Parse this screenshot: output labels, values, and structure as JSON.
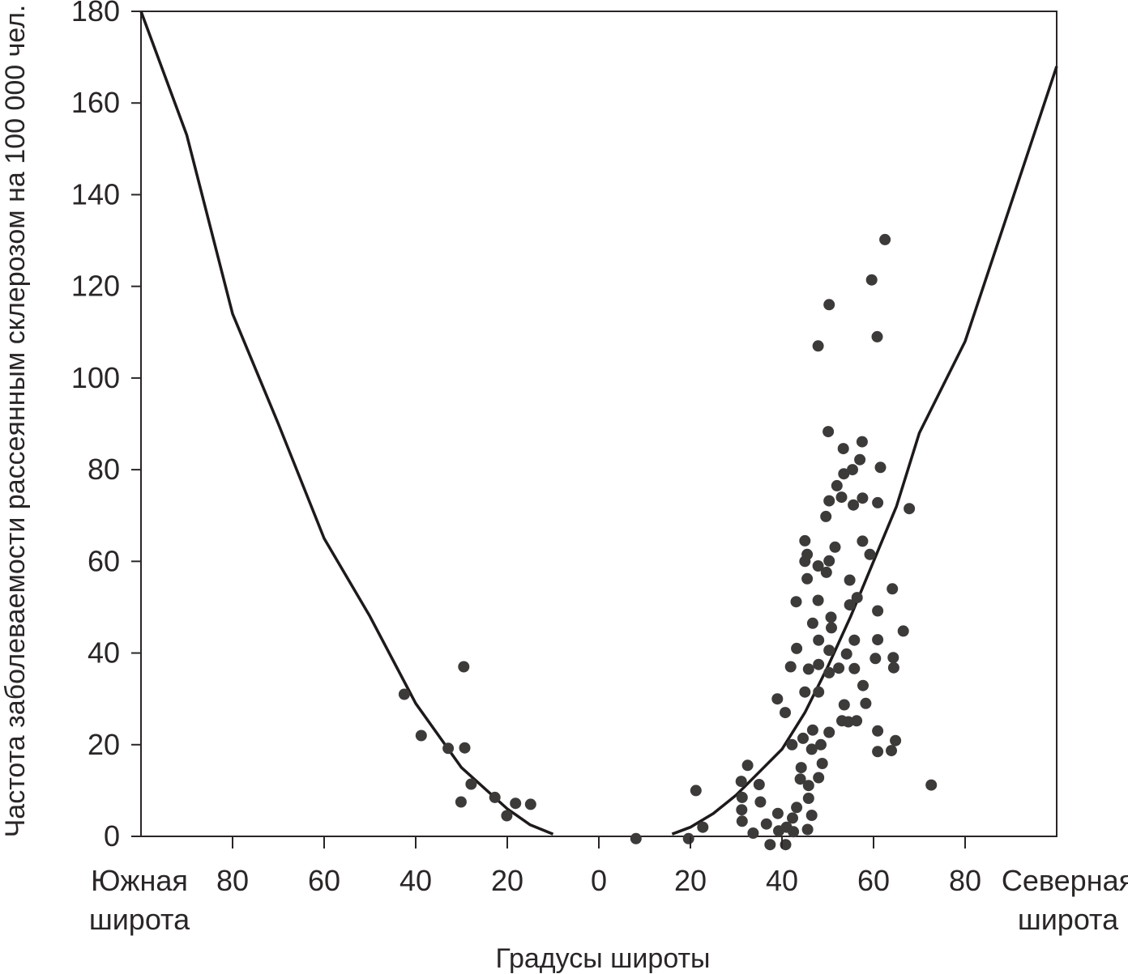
{
  "chart_data": {
    "type": "scatter",
    "title": "",
    "xlabel": "Градусы широты",
    "ylabel": "Частота заболеваемости рассеянным склерозом на 100 000 чел.",
    "xlim": [
      -100,
      100
    ],
    "ylim": [
      0,
      180
    ],
    "grid": false,
    "legend": "none",
    "colors": {
      "axis": "#2a2626",
      "points": "#3d3a3a",
      "curve": "#1e1a1a"
    },
    "y_ticks": [
      {
        "value": 0,
        "label": "0"
      },
      {
        "value": 20,
        "label": "20"
      },
      {
        "value": 40,
        "label": "40"
      },
      {
        "value": 60,
        "label": "60"
      },
      {
        "value": 80,
        "label": "80"
      },
      {
        "value": 100,
        "label": "100"
      },
      {
        "value": 120,
        "label": "120"
      },
      {
        "value": 140,
        "label": "140"
      },
      {
        "value": 160,
        "label": "160"
      },
      {
        "value": 180,
        "label": "180"
      }
    ],
    "x_ticks": [
      {
        "value": -80,
        "label": "80"
      },
      {
        "value": -60,
        "label": "60"
      },
      {
        "value": -40,
        "label": "40"
      },
      {
        "value": -20,
        "label": "20"
      },
      {
        "value": 0,
        "label": "0"
      },
      {
        "value": 20,
        "label": "20"
      },
      {
        "value": 40,
        "label": "40"
      },
      {
        "value": 60,
        "label": "60"
      },
      {
        "value": 80,
        "label": "80"
      }
    ],
    "end_labels": {
      "left": [
        "Южная",
        "широта"
      ],
      "right": [
        "Северная",
        "широта"
      ]
    },
    "trend_curves": [
      {
        "points": [
          [
            -100,
            180
          ],
          [
            -90,
            153
          ],
          [
            -80,
            114
          ],
          [
            -70,
            90
          ],
          [
            -60,
            65
          ],
          [
            -50,
            48
          ],
          [
            -40,
            29
          ],
          [
            -30,
            15
          ],
          [
            -20,
            6
          ],
          [
            -15,
            2.5
          ],
          [
            -10,
            0.5
          ]
        ]
      },
      {
        "points": [
          [
            16,
            0.5
          ],
          [
            20,
            2
          ],
          [
            25,
            5
          ],
          [
            30,
            9
          ],
          [
            35,
            14
          ],
          [
            40,
            19
          ],
          [
            45,
            27
          ],
          [
            50,
            37
          ],
          [
            55,
            48
          ],
          [
            60,
            60
          ],
          [
            65,
            72
          ],
          [
            70,
            88
          ],
          [
            80,
            108
          ],
          [
            90,
            138
          ],
          [
            100,
            168
          ]
        ]
      }
    ],
    "points": [
      [
        -42.5,
        31
      ],
      [
        -38.8,
        22
      ],
      [
        -32.9,
        19.2
      ],
      [
        -29.5,
        37
      ],
      [
        -29.3,
        19.3
      ],
      [
        -27.9,
        11.4
      ],
      [
        -30.1,
        7.5
      ],
      [
        -22.7,
        8.5
      ],
      [
        -20.1,
        4.5
      ],
      [
        -18.2,
        7.2
      ],
      [
        -14.9,
        7
      ],
      [
        8.1,
        -0.5
      ],
      [
        19.6,
        -0.5
      ],
      [
        21.2,
        10
      ],
      [
        22.7,
        2
      ],
      [
        31.1,
        12
      ],
      [
        32.5,
        15.5
      ],
      [
        31.3,
        8.5
      ],
      [
        31.2,
        5.8
      ],
      [
        31.3,
        3.3
      ],
      [
        33.7,
        0.7
      ],
      [
        35,
        11.3
      ],
      [
        35.3,
        7.5
      ],
      [
        36.6,
        2.7
      ],
      [
        37.4,
        -1.8
      ],
      [
        39,
        30
      ],
      [
        39.1,
        5
      ],
      [
        39.3,
        1.2
      ],
      [
        40.7,
        27
      ],
      [
        40.8,
        -1.8
      ],
      [
        41,
        2
      ],
      [
        41.9,
        37
      ],
      [
        42.2,
        20
      ],
      [
        42.3,
        4
      ],
      [
        42.5,
        1
      ],
      [
        43.1,
        51.2
      ],
      [
        43.2,
        41
      ],
      [
        43.2,
        6.3
      ],
      [
        44,
        12.5
      ],
      [
        44.2,
        15
      ],
      [
        44.6,
        21.4
      ],
      [
        45,
        31.5
      ],
      [
        45,
        60
      ],
      [
        45,
        64.5
      ],
      [
        45.5,
        61.5
      ],
      [
        45.5,
        56.2
      ],
      [
        45.6,
        1.5
      ],
      [
        45.8,
        36.5
      ],
      [
        45.8,
        11.1
      ],
      [
        45.8,
        8.3
      ],
      [
        46.5,
        4.6
      ],
      [
        46.5,
        19
      ],
      [
        46.7,
        23.2
      ],
      [
        46.7,
        46.5
      ],
      [
        47.9,
        107
      ],
      [
        47.9,
        59
      ],
      [
        47.9,
        51.5
      ],
      [
        48,
        42.8
      ],
      [
        48,
        37.5
      ],
      [
        48,
        31.5
      ],
      [
        48,
        12.8
      ],
      [
        48.5,
        20
      ],
      [
        48.8,
        15.9
      ],
      [
        49.6,
        69.8
      ],
      [
        49.7,
        57.6
      ],
      [
        50.1,
        88.3
      ],
      [
        50.3,
        116
      ],
      [
        50.3,
        73.2
      ],
      [
        50.3,
        60.1
      ],
      [
        50.3,
        40.6
      ],
      [
        50.3,
        35.7
      ],
      [
        50.3,
        22.7
      ],
      [
        50.7,
        47.8
      ],
      [
        50.8,
        45.5
      ],
      [
        51.6,
        63.1
      ],
      [
        52,
        76.5
      ],
      [
        52.4,
        36.7
      ],
      [
        53,
        74
      ],
      [
        53.1,
        25.2
      ],
      [
        53.4,
        84.6
      ],
      [
        53.5,
        79.1
      ],
      [
        53.6,
        28.7
      ],
      [
        54.1,
        39.8
      ],
      [
        54.5,
        25
      ],
      [
        54.8,
        55.9
      ],
      [
        54.8,
        50.5
      ],
      [
        55.4,
        80
      ],
      [
        55.6,
        72.3
      ],
      [
        55.8,
        42.8
      ],
      [
        55.8,
        36.6
      ],
      [
        56.3,
        25.2
      ],
      [
        56.4,
        52.1
      ],
      [
        57,
        82.2
      ],
      [
        57.5,
        86.1
      ],
      [
        57.6,
        64.4
      ],
      [
        57.6,
        73.8
      ],
      [
        57.7,
        32.9
      ],
      [
        58.3,
        29
      ],
      [
        59.2,
        61.5
      ],
      [
        59.6,
        121.4
      ],
      [
        60.4,
        38.8
      ],
      [
        60.8,
        109
      ],
      [
        60.9,
        72.8
      ],
      [
        60.9,
        49.2
      ],
      [
        60.9,
        42.9
      ],
      [
        60.9,
        23
      ],
      [
        60.9,
        18.5
      ],
      [
        61.5,
        80.5
      ],
      [
        62.5,
        130.2
      ],
      [
        63.9,
        18.7
      ],
      [
        64.1,
        54
      ],
      [
        64.3,
        39
      ],
      [
        64.4,
        36.8
      ],
      [
        64.8,
        20.9
      ],
      [
        66.5,
        44.8
      ],
      [
        67.8,
        71.5
      ],
      [
        72.6,
        11.2
      ]
    ]
  }
}
